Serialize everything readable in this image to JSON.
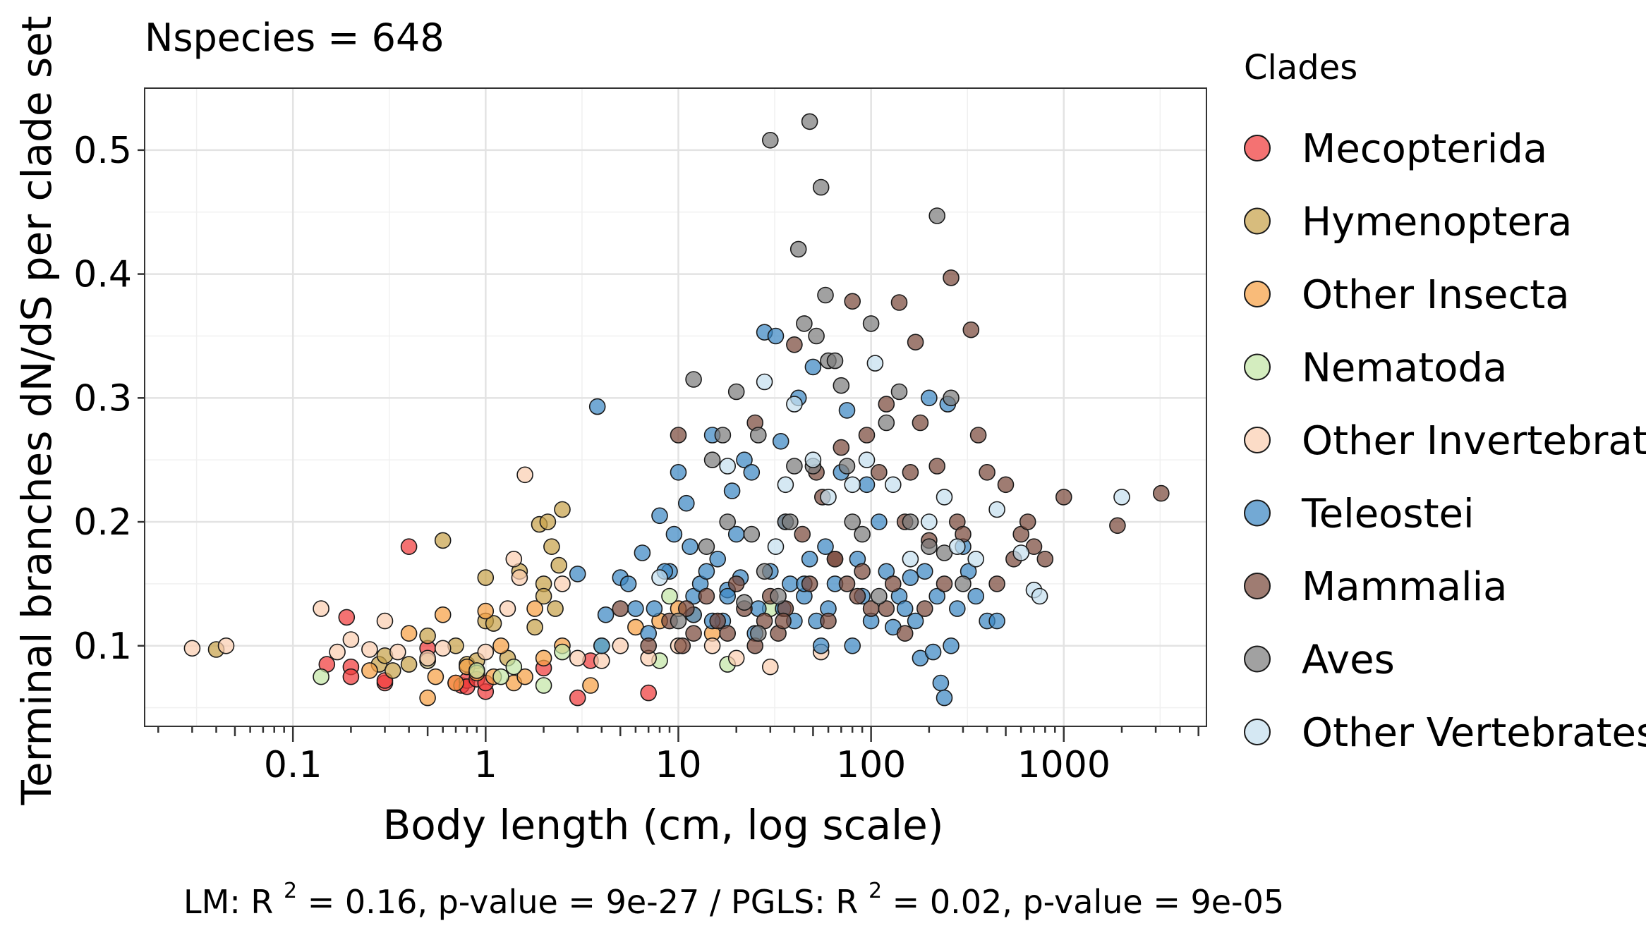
{
  "chart_data": {
    "type": "scatter",
    "subtitle": "Nspecies = 648",
    "xlabel": "Body length (cm, log scale)",
    "ylabel": "Terminal branches dN/dS per clade set",
    "x_scale": "log10",
    "xlim": [
      0.017,
      5500
    ],
    "ylim": [
      0.035,
      0.55
    ],
    "x_ticks": [
      0.1,
      1,
      10,
      100,
      1000
    ],
    "x_tick_labels": [
      "0.1",
      "1",
      "10",
      "100",
      "1000"
    ],
    "y_ticks": [
      0.1,
      0.2,
      0.3,
      0.4,
      0.5
    ],
    "y_tick_labels": [
      "0.1",
      "0.2",
      "0.3",
      "0.4",
      "0.5"
    ],
    "grid": true,
    "legend": {
      "title": "Clades",
      "position": "right"
    },
    "caption_parts": {
      "lm_prefix": "LM:  R",
      "sup": "2",
      "lm_rest": " = 0.16, p-value = 9e-27 / PGLS: R",
      "pgls_rest": " = 0.02, p-value = 9e-05"
    },
    "series": [
      {
        "name": "Mecopterida",
        "color": "#f03b3b",
        "x": [
          0.15,
          0.19,
          0.2,
          0.2,
          0.3,
          0.3,
          0.4,
          0.5,
          0.5,
          0.7,
          0.75,
          0.8,
          0.8,
          0.9,
          1.0,
          1.0,
          2.0,
          3.0,
          3.5,
          7.0
        ],
        "y": [
          0.085,
          0.123,
          0.083,
          0.075,
          0.07,
          0.072,
          0.18,
          0.098,
          0.088,
          0.07,
          0.068,
          0.072,
          0.067,
          0.073,
          0.063,
          0.07,
          0.082,
          0.058,
          0.088,
          0.062
        ]
      },
      {
        "name": "Hymenoptera",
        "color": "#c7a24b",
        "x": [
          0.04,
          0.28,
          0.3,
          0.33,
          0.4,
          0.5,
          0.6,
          0.7,
          0.8,
          0.9,
          1.0,
          1.0,
          1.1,
          1.3,
          1.5,
          1.8,
          1.9,
          2.0,
          2.0,
          2.1,
          2.2,
          2.3,
          2.4,
          2.5
        ],
        "y": [
          0.097,
          0.085,
          0.092,
          0.08,
          0.085,
          0.108,
          0.185,
          0.1,
          0.085,
          0.088,
          0.155,
          0.12,
          0.118,
          0.09,
          0.16,
          0.115,
          0.198,
          0.15,
          0.14,
          0.2,
          0.18,
          0.13,
          0.165,
          0.21
        ]
      },
      {
        "name": "Other Insecta",
        "color": "#f7a145",
        "x": [
          0.25,
          0.4,
          0.5,
          0.55,
          0.6,
          0.7,
          0.8,
          0.9,
          1.0,
          1.1,
          1.2,
          1.4,
          1.6,
          1.8,
          2.0,
          2.5,
          3.5,
          6.0,
          8.0,
          10.0,
          12.0,
          15.0
        ],
        "y": [
          0.08,
          0.11,
          0.058,
          0.075,
          0.125,
          0.07,
          0.083,
          0.078,
          0.128,
          0.075,
          0.1,
          0.07,
          0.075,
          0.13,
          0.09,
          0.1,
          0.068,
          0.115,
          0.12,
          0.13,
          0.125,
          0.11
        ]
      },
      {
        "name": "Nematoda",
        "color": "#c3e6a6",
        "x": [
          0.14,
          0.5,
          0.9,
          1.2,
          1.4,
          2.0,
          2.5,
          4.0,
          8.0,
          9.0,
          18.0,
          30.0
        ],
        "y": [
          0.075,
          0.088,
          0.08,
          0.075,
          0.083,
          0.068,
          0.095,
          0.1,
          0.088,
          0.14,
          0.085,
          0.13
        ]
      },
      {
        "name": "Other Invertebrates",
        "color": "#fbcfb2",
        "x": [
          0.03,
          0.045,
          0.14,
          0.17,
          0.2,
          0.25,
          0.3,
          0.35,
          0.5,
          0.6,
          1.0,
          1.3,
          1.4,
          1.5,
          1.6,
          2.5,
          3.0,
          4.0,
          5.0,
          7.0,
          10.0,
          15.0,
          20.0,
          30.0,
          55.0
        ],
        "y": [
          0.098,
          0.1,
          0.13,
          0.095,
          0.105,
          0.097,
          0.12,
          0.095,
          0.09,
          0.098,
          0.095,
          0.13,
          0.17,
          0.155,
          0.238,
          0.15,
          0.09,
          0.088,
          0.1,
          0.09,
          0.1,
          0.1,
          0.09,
          0.083,
          0.095
        ]
      },
      {
        "name": "Teleostei",
        "color": "#3d88c4",
        "x": [
          3.0,
          3.8,
          4.0,
          4.2,
          5.0,
          5.5,
          6.0,
          6.5,
          7.0,
          7.5,
          8.0,
          9.0,
          9.5,
          10.0,
          11.0,
          11.5,
          12.0,
          13.0,
          14.0,
          15.0,
          16.0,
          17.0,
          18.0,
          19.0,
          20.0,
          21.0,
          22.0,
          24.0,
          26.0,
          28.0,
          30.0,
          32.0,
          34.0,
          36.0,
          38.0,
          40.0,
          42.0,
          45.0,
          48.0,
          50.0,
          52.0,
          55.0,
          58.0,
          60.0,
          65.0,
          70.0,
          75.0,
          80.0,
          85.0,
          90.0,
          95.0,
          100.0,
          110.0,
          120.0,
          130.0,
          140.0,
          150.0,
          160.0,
          170.0,
          180.0,
          190.0,
          200.0,
          210.0,
          220.0,
          230.0,
          240.0,
          250.0,
          260.0,
          280.0,
          300.0,
          320.0,
          350.0,
          400.0,
          450.0,
          15.0,
          18.0,
          25.0,
          35.0,
          45.0,
          12.0,
          8.5
        ],
        "y": [
          0.158,
          0.293,
          0.1,
          0.125,
          0.155,
          0.15,
          0.13,
          0.175,
          0.11,
          0.13,
          0.205,
          0.16,
          0.19,
          0.24,
          0.215,
          0.18,
          0.14,
          0.15,
          0.16,
          0.27,
          0.17,
          0.12,
          0.145,
          0.225,
          0.19,
          0.155,
          0.25,
          0.24,
          0.13,
          0.353,
          0.16,
          0.35,
          0.265,
          0.2,
          0.15,
          0.12,
          0.3,
          0.14,
          0.17,
          0.325,
          0.12,
          0.1,
          0.18,
          0.13,
          0.15,
          0.24,
          0.29,
          0.1,
          0.17,
          0.14,
          0.23,
          0.12,
          0.2,
          0.16,
          0.115,
          0.14,
          0.13,
          0.155,
          0.12,
          0.09,
          0.16,
          0.3,
          0.095,
          0.14,
          0.07,
          0.058,
          0.295,
          0.1,
          0.13,
          0.18,
          0.16,
          0.14,
          0.12,
          0.12,
          0.12,
          0.14,
          0.11,
          0.13,
          0.15,
          0.125,
          0.16
        ]
      },
      {
        "name": "Mammalia",
        "color": "#7a4a3c",
        "x": [
          5.0,
          7.0,
          9.0,
          10.0,
          11.0,
          12.0,
          14.0,
          16.0,
          18.0,
          20.0,
          22.0,
          25.0,
          28.0,
          30.0,
          33.0,
          36.0,
          40.0,
          44.0,
          48.0,
          52.0,
          56.0,
          60.0,
          65.0,
          70.0,
          75.0,
          80.0,
          85.0,
          90.0,
          95.0,
          100.0,
          110.0,
          120.0,
          130.0,
          140.0,
          150.0,
          160.0,
          170.0,
          180.0,
          190.0,
          200.0,
          220.0,
          240.0,
          260.0,
          280.0,
          300.0,
          330.0,
          360.0,
          400.0,
          450.0,
          500.0,
          550.0,
          600.0,
          650.0,
          700.0,
          800.0,
          1000.0,
          1900.0,
          3200.0,
          10.5,
          25.0,
          35.0,
          65.0,
          120.0,
          150.0
        ],
        "y": [
          0.13,
          0.1,
          0.12,
          0.27,
          0.13,
          0.11,
          0.14,
          0.12,
          0.11,
          0.15,
          0.13,
          0.28,
          0.12,
          0.14,
          0.11,
          0.13,
          0.343,
          0.19,
          0.15,
          0.24,
          0.22,
          0.12,
          0.17,
          0.26,
          0.15,
          0.378,
          0.14,
          0.16,
          0.27,
          0.13,
          0.24,
          0.295,
          0.15,
          0.377,
          0.2,
          0.24,
          0.345,
          0.28,
          0.13,
          0.185,
          0.245,
          0.15,
          0.397,
          0.2,
          0.19,
          0.355,
          0.27,
          0.24,
          0.15,
          0.23,
          0.17,
          0.19,
          0.2,
          0.18,
          0.17,
          0.22,
          0.197,
          0.223,
          0.1,
          0.1,
          0.12,
          0.17,
          0.13,
          0.11
        ]
      },
      {
        "name": "Aves",
        "color": "#7d7d7d",
        "x": [
          10.0,
          12.0,
          14.0,
          15.0,
          17.0,
          18.0,
          20.0,
          22.0,
          24.0,
          26.0,
          28.0,
          30.0,
          33.0,
          36.0,
          40.0,
          42.0,
          45.0,
          48.0,
          50.0,
          52.0,
          55.0,
          58.0,
          60.0,
          65.0,
          70.0,
          75.0,
          80.0,
          90.0,
          100.0,
          110.0,
          120.0,
          140.0,
          160.0,
          200.0,
          220.0,
          240.0,
          260.0,
          300.0,
          26.0,
          38.0
        ],
        "y": [
          0.12,
          0.315,
          0.18,
          0.25,
          0.27,
          0.2,
          0.305,
          0.135,
          0.19,
          0.27,
          0.16,
          0.508,
          0.14,
          0.2,
          0.245,
          0.42,
          0.36,
          0.523,
          0.245,
          0.35,
          0.47,
          0.383,
          0.33,
          0.33,
          0.31,
          0.245,
          0.2,
          0.19,
          0.36,
          0.14,
          0.28,
          0.305,
          0.2,
          0.18,
          0.447,
          0.175,
          0.3,
          0.15,
          0.11,
          0.2
        ]
      },
      {
        "name": "Other Vertebrates",
        "color": "#c5dfee",
        "x": [
          8.0,
          18.0,
          28.0,
          32.0,
          36.0,
          40.0,
          50.0,
          60.0,
          80.0,
          95.0,
          105.0,
          130.0,
          160.0,
          200.0,
          240.0,
          280.0,
          350.0,
          450.0,
          600.0,
          700.0,
          2000.0,
          750.0
        ],
        "y": [
          0.155,
          0.245,
          0.313,
          0.18,
          0.23,
          0.295,
          0.25,
          0.22,
          0.23,
          0.25,
          0.328,
          0.23,
          0.17,
          0.2,
          0.22,
          0.18,
          0.17,
          0.21,
          0.175,
          0.145,
          0.22,
          0.14
        ]
      }
    ]
  }
}
